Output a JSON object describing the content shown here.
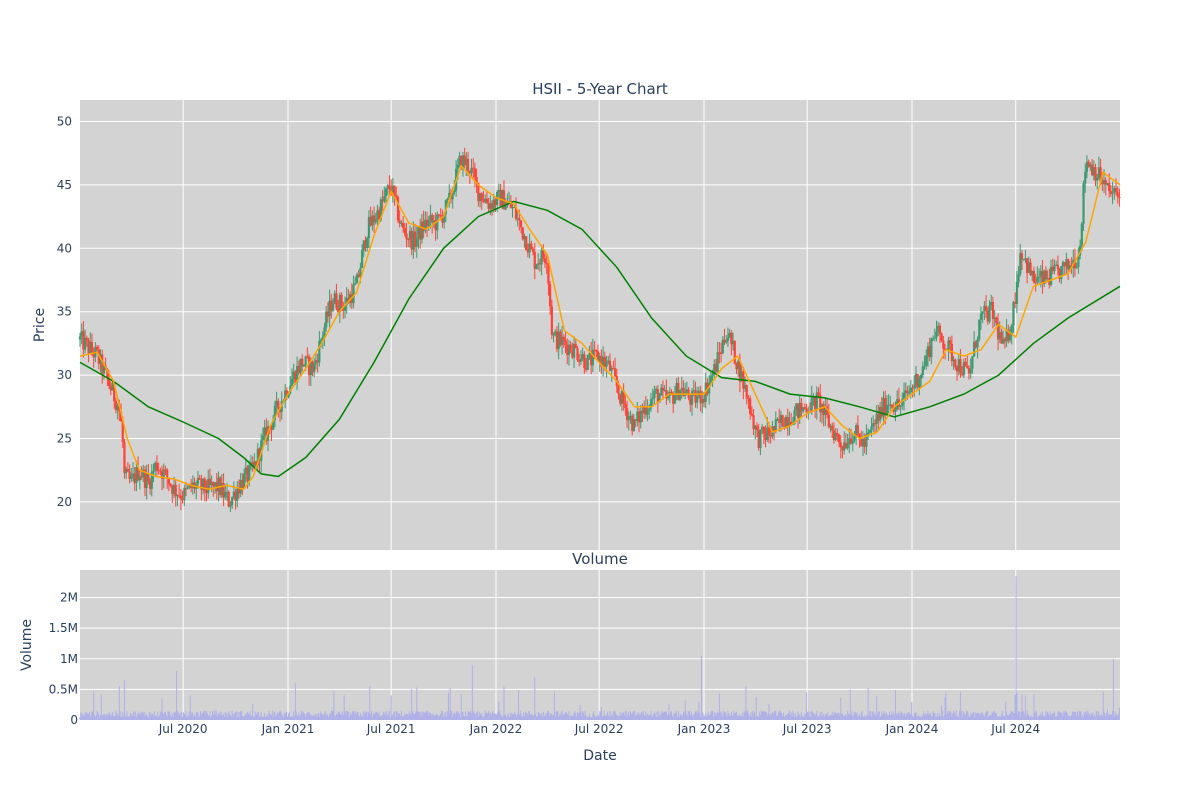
{
  "chart_data": [
    {
      "type": "candlestick",
      "title": "HSII - 5-Year Chart",
      "ylabel": "Price",
      "xlabel": "",
      "x_range": [
        "2020-01-02",
        "2024-12-31"
      ],
      "ylim": [
        16.2,
        51.7
      ],
      "y_ticks": [
        20,
        25,
        30,
        35,
        40,
        45,
        50
      ],
      "x_ticks": [
        {
          "date": "2020-07-01",
          "label": "Jul 2020"
        },
        {
          "date": "2021-01-01",
          "label": "Jan 2021"
        },
        {
          "date": "2021-07-01",
          "label": "Jul 2021"
        },
        {
          "date": "2022-01-01",
          "label": "Jan 2022"
        },
        {
          "date": "2022-07-01",
          "label": "Jul 2022"
        },
        {
          "date": "2023-01-01",
          "label": "Jan 2023"
        },
        {
          "date": "2023-07-01",
          "label": "Jul 2023"
        },
        {
          "date": "2024-01-01",
          "label": "Jan 2024"
        },
        {
          "date": "2024-07-01",
          "label": "Jul 2024"
        }
      ],
      "grid": true,
      "colors": {
        "up": "#3d9970",
        "down": "#ff4136",
        "ma_short": "#ffa500",
        "ma_long": "#008000",
        "plot_bg": "#d3d3d3",
        "grid": "#ffffff"
      },
      "close_path": [
        [
          "2020-01-02",
          32.8
        ],
        [
          "2020-02-01",
          31.5
        ],
        [
          "2020-02-20",
          29.5
        ],
        [
          "2020-03-10",
          27.5
        ],
        [
          "2020-03-16",
          25.5
        ],
        [
          "2020-03-20",
          22.0
        ],
        [
          "2020-03-31",
          21.5
        ],
        [
          "2020-04-15",
          22.5
        ],
        [
          "2020-05-01",
          21.5
        ],
        [
          "2020-05-15",
          23.0
        ],
        [
          "2020-06-01",
          22.0
        ],
        [
          "2020-06-15",
          21.0
        ],
        [
          "2020-07-01",
          20.5
        ],
        [
          "2020-07-20",
          21.3
        ],
        [
          "2020-08-10",
          21.0
        ],
        [
          "2020-09-01",
          21.2
        ],
        [
          "2020-09-20",
          20.0
        ],
        [
          "2020-10-10",
          21.5
        ],
        [
          "2020-10-31",
          22.5
        ],
        [
          "2020-11-20",
          25.0
        ],
        [
          "2020-12-15",
          27.5
        ],
        [
          "2021-01-05",
          29.5
        ],
        [
          "2021-01-25",
          31.0
        ],
        [
          "2021-02-15",
          30.5
        ],
        [
          "2021-03-01",
          33.0
        ],
        [
          "2021-03-20",
          36.0
        ],
        [
          "2021-04-10",
          35.5
        ],
        [
          "2021-05-01",
          37.0
        ],
        [
          "2021-05-20",
          41.5
        ],
        [
          "2021-06-10",
          43.0
        ],
        [
          "2021-06-30",
          45.0
        ],
        [
          "2021-07-20",
          41.5
        ],
        [
          "2021-08-10",
          40.5
        ],
        [
          "2021-08-31",
          42.0
        ],
        [
          "2021-09-20",
          42.0
        ],
        [
          "2021-10-10",
          43.5
        ],
        [
          "2021-10-31",
          47.0
        ],
        [
          "2021-11-15",
          46.5
        ],
        [
          "2021-12-01",
          44.5
        ],
        [
          "2021-12-20",
          43.5
        ],
        [
          "2022-01-10",
          44.0
        ],
        [
          "2022-02-01",
          43.0
        ],
        [
          "2022-02-20",
          41.0
        ],
        [
          "2022-03-10",
          39.0
        ],
        [
          "2022-03-31",
          39.5
        ],
        [
          "2022-04-10",
          33.0
        ],
        [
          "2022-04-30",
          32.5
        ],
        [
          "2022-05-20",
          32.0
        ],
        [
          "2022-06-10",
          31.0
        ],
        [
          "2022-06-30",
          31.5
        ],
        [
          "2022-07-20",
          30.5
        ],
        [
          "2022-08-10",
          28.0
        ],
        [
          "2022-08-31",
          26.0
        ],
        [
          "2022-09-20",
          27.5
        ],
        [
          "2022-10-10",
          28.5
        ],
        [
          "2022-10-31",
          28.0
        ],
        [
          "2022-11-20",
          29.0
        ],
        [
          "2022-12-10",
          28.0
        ],
        [
          "2022-12-31",
          28.5
        ],
        [
          "2023-01-20",
          30.5
        ],
        [
          "2023-02-10",
          33.5
        ],
        [
          "2023-02-28",
          31.0
        ],
        [
          "2023-03-20",
          28.0
        ],
        [
          "2023-04-05",
          25.0
        ],
        [
          "2023-04-30",
          25.5
        ],
        [
          "2023-05-20",
          26.5
        ],
        [
          "2023-06-10",
          27.0
        ],
        [
          "2023-06-30",
          27.5
        ],
        [
          "2023-07-20",
          28.0
        ],
        [
          "2023-08-10",
          26.0
        ],
        [
          "2023-08-31",
          24.5
        ],
        [
          "2023-09-20",
          25.5
        ],
        [
          "2023-10-10",
          24.5
        ],
        [
          "2023-10-31",
          26.5
        ],
        [
          "2023-11-20",
          28.0
        ],
        [
          "2023-12-10",
          27.5
        ],
        [
          "2023-12-31",
          29.0
        ],
        [
          "2024-01-20",
          30.5
        ],
        [
          "2024-02-10",
          33.5
        ],
        [
          "2024-02-28",
          32.5
        ],
        [
          "2024-03-20",
          31.0
        ],
        [
          "2024-04-10",
          30.0
        ],
        [
          "2024-04-30",
          34.5
        ],
        [
          "2024-05-20",
          35.0
        ],
        [
          "2024-06-10",
          32.0
        ],
        [
          "2024-06-25",
          34.5
        ],
        [
          "2024-07-10",
          40.0
        ],
        [
          "2024-07-31",
          37.5
        ],
        [
          "2024-08-20",
          37.5
        ],
        [
          "2024-09-10",
          38.0
        ],
        [
          "2024-09-30",
          38.5
        ],
        [
          "2024-10-20",
          39.5
        ],
        [
          "2024-11-01",
          47.0
        ],
        [
          "2024-11-20",
          46.0
        ],
        [
          "2024-12-10",
          44.5
        ],
        [
          "2024-12-31",
          44.0
        ]
      ],
      "ma_short": [
        [
          "2020-01-02",
          31.5
        ],
        [
          "2020-02-01",
          31.8
        ],
        [
          "2020-03-01",
          29.5
        ],
        [
          "2020-03-25",
          25.0
        ],
        [
          "2020-04-15",
          22.5
        ],
        [
          "2020-05-15",
          22.0
        ],
        [
          "2020-06-15",
          21.8
        ],
        [
          "2020-07-15",
          21.3
        ],
        [
          "2020-08-15",
          21.0
        ],
        [
          "2020-09-15",
          21.3
        ],
        [
          "2020-10-15",
          21.0
        ],
        [
          "2020-11-01",
          22.0
        ],
        [
          "2020-12-01",
          26.0
        ],
        [
          "2021-01-01",
          28.5
        ],
        [
          "2021-02-01",
          30.5
        ],
        [
          "2021-03-01",
          32.5
        ],
        [
          "2021-04-01",
          35.0
        ],
        [
          "2021-05-01",
          36.5
        ],
        [
          "2021-06-01",
          41.0
        ],
        [
          "2021-07-01",
          44.5
        ],
        [
          "2021-08-01",
          42.0
        ],
        [
          "2021-09-01",
          41.5
        ],
        [
          "2021-10-01",
          42.5
        ],
        [
          "2021-11-01",
          46.5
        ],
        [
          "2021-12-01",
          45.0
        ],
        [
          "2022-01-01",
          44.0
        ],
        [
          "2022-02-01",
          43.5
        ],
        [
          "2022-03-01",
          41.5
        ],
        [
          "2022-04-01",
          39.5
        ],
        [
          "2022-05-01",
          33.5
        ],
        [
          "2022-06-01",
          32.5
        ],
        [
          "2022-07-01",
          31.0
        ],
        [
          "2022-08-01",
          29.5
        ],
        [
          "2022-09-01",
          27.5
        ],
        [
          "2022-10-01",
          27.5
        ],
        [
          "2022-11-01",
          28.5
        ],
        [
          "2022-12-01",
          28.5
        ],
        [
          "2023-01-01",
          28.5
        ],
        [
          "2023-02-01",
          30.5
        ],
        [
          "2023-03-01",
          31.5
        ],
        [
          "2023-04-01",
          28.5
        ],
        [
          "2023-05-01",
          25.5
        ],
        [
          "2023-06-01",
          26.0
        ],
        [
          "2023-07-01",
          27.0
        ],
        [
          "2023-08-01",
          27.5
        ],
        [
          "2023-09-01",
          26.0
        ],
        [
          "2023-10-01",
          25.0
        ],
        [
          "2023-11-01",
          25.5
        ],
        [
          "2023-12-01",
          27.5
        ],
        [
          "2024-01-01",
          28.5
        ],
        [
          "2024-02-01",
          29.5
        ],
        [
          "2024-03-01",
          32.0
        ],
        [
          "2024-04-01",
          31.5
        ],
        [
          "2024-05-01",
          32.0
        ],
        [
          "2024-06-01",
          34.0
        ],
        [
          "2024-07-01",
          33.0
        ],
        [
          "2024-08-01",
          37.0
        ],
        [
          "2024-09-01",
          37.5
        ],
        [
          "2024-10-01",
          38.0
        ],
        [
          "2024-11-01",
          40.5
        ],
        [
          "2024-12-01",
          46.0
        ],
        [
          "2024-12-31",
          45.0
        ]
      ],
      "ma_long": [
        [
          "2020-01-02",
          31.0
        ],
        [
          "2020-03-01",
          29.5
        ],
        [
          "2020-05-01",
          27.5
        ],
        [
          "2020-07-01",
          26.3
        ],
        [
          "2020-09-01",
          25.0
        ],
        [
          "2020-10-15",
          23.5
        ],
        [
          "2020-11-15",
          22.2
        ],
        [
          "2020-12-15",
          22.0
        ],
        [
          "2021-02-01",
          23.5
        ],
        [
          "2021-04-01",
          26.5
        ],
        [
          "2021-06-01",
          31.0
        ],
        [
          "2021-08-01",
          36.0
        ],
        [
          "2021-10-01",
          40.0
        ],
        [
          "2021-12-01",
          42.5
        ],
        [
          "2022-02-01",
          43.7
        ],
        [
          "2022-04-01",
          43.0
        ],
        [
          "2022-06-01",
          41.5
        ],
        [
          "2022-08-01",
          38.5
        ],
        [
          "2022-10-01",
          34.5
        ],
        [
          "2022-12-01",
          31.5
        ],
        [
          "2023-02-01",
          29.8
        ],
        [
          "2023-04-01",
          29.5
        ],
        [
          "2023-06-01",
          28.5
        ],
        [
          "2023-08-01",
          28.2
        ],
        [
          "2023-10-01",
          27.5
        ],
        [
          "2023-12-01",
          26.7
        ],
        [
          "2024-02-01",
          27.5
        ],
        [
          "2024-04-01",
          28.5
        ],
        [
          "2024-06-01",
          30.0
        ],
        [
          "2024-08-01",
          32.5
        ],
        [
          "2024-10-01",
          34.5
        ],
        [
          "2024-12-31",
          37.0
        ]
      ]
    },
    {
      "type": "bar",
      "title": "Volume",
      "ylabel": "Volume",
      "xlabel": "Date",
      "ylim": [
        0,
        2450000
      ],
      "y_ticks": [
        {
          "value": 0,
          "label": "0"
        },
        {
          "value": 500000,
          "label": "0.5M"
        },
        {
          "value": 1000000,
          "label": "1M"
        },
        {
          "value": 1500000,
          "label": "1.5M"
        },
        {
          "value": 2000000,
          "label": "2M"
        }
      ],
      "bar_color": "#b0b0e8",
      "baseline_volume": 90000,
      "spikes": [
        [
          "2020-03-20",
          650000
        ],
        [
          "2020-06-20",
          800000
        ],
        [
          "2021-05-25",
          550000
        ],
        [
          "2021-07-01",
          400000
        ],
        [
          "2021-11-20",
          900000
        ],
        [
          "2022-03-10",
          700000
        ],
        [
          "2022-12-28",
          1050000
        ],
        [
          "2023-03-15",
          550000
        ],
        [
          "2023-06-30",
          450000
        ],
        [
          "2023-09-15",
          500000
        ],
        [
          "2024-03-01",
          450000
        ],
        [
          "2024-07-01",
          2350000
        ],
        [
          "2024-12-20",
          1000000
        ]
      ]
    }
  ]
}
